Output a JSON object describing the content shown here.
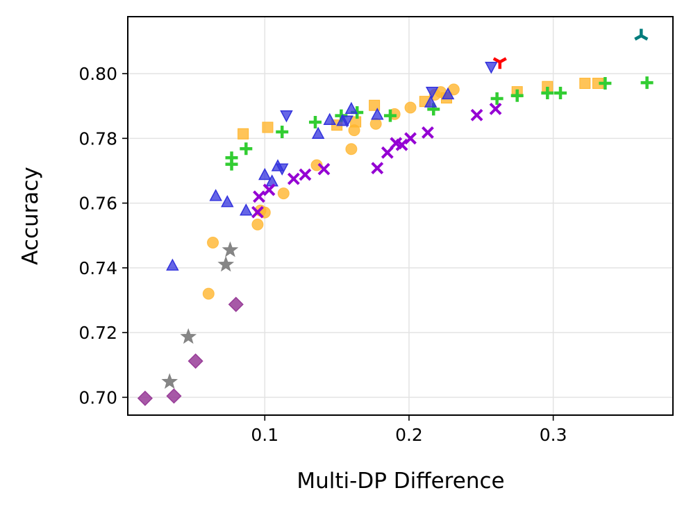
{
  "chart_data": {
    "type": "scatter",
    "title": "",
    "xlabel": "Multi-DP Difference",
    "ylabel": "Accuracy",
    "xlim": [
      0.005,
      0.383
    ],
    "ylim": [
      0.6945,
      0.8176
    ],
    "grid": true,
    "xticks": [
      0.1,
      0.2,
      0.3
    ],
    "xtick_labels": [
      "0.1",
      "0.2",
      "0.3"
    ],
    "yticks": [
      0.7,
      0.72,
      0.74,
      0.76,
      0.78,
      0.8
    ],
    "ytick_labels": [
      "0.70",
      "0.72",
      "0.74",
      "0.76",
      "0.78",
      "0.80"
    ],
    "series": [
      {
        "name": "orange-circles",
        "marker": "circle",
        "color": "#FFB52E",
        "x": [
          0.064,
          0.061,
          0.095,
          0.097,
          0.1,
          0.113,
          0.136,
          0.16,
          0.162,
          0.177,
          0.19,
          0.201,
          0.218,
          0.222,
          0.231
        ],
        "y": [
          0.7478,
          0.732,
          0.7534,
          0.7577,
          0.7571,
          0.763,
          0.7717,
          0.7767,
          0.7825,
          0.7845,
          0.7875,
          0.7895,
          0.7935,
          0.7943,
          0.7951
        ]
      },
      {
        "name": "orange-squares",
        "marker": "square",
        "color": "#FFB52E",
        "x": [
          0.085,
          0.102,
          0.15,
          0.163,
          0.176,
          0.211,
          0.226,
          0.275,
          0.296,
          0.322,
          0.331
        ],
        "y": [
          0.7814,
          0.7834,
          0.7841,
          0.7851,
          0.7902,
          0.7914,
          0.7925,
          0.7944,
          0.796,
          0.797,
          0.797
        ]
      },
      {
        "name": "green-plus",
        "marker": "plus",
        "color": "#32CD32",
        "x": [
          0.077,
          0.077,
          0.087,
          0.112,
          0.135,
          0.153,
          0.164,
          0.187,
          0.217,
          0.261,
          0.275,
          0.296,
          0.305,
          0.336,
          0.365
        ],
        "y": [
          0.774,
          0.772,
          0.7768,
          0.782,
          0.785,
          0.787,
          0.788,
          0.787,
          0.789,
          0.7923,
          0.7932,
          0.794,
          0.794,
          0.797,
          0.7972
        ]
      },
      {
        "name": "blue-triangles-up",
        "marker": "triangle-up",
        "color": "#3333DD",
        "x": [
          0.036,
          0.066,
          0.074,
          0.087,
          0.1,
          0.105,
          0.109,
          0.137,
          0.145,
          0.154,
          0.16,
          0.178,
          0.215,
          0.227
        ],
        "y": [
          0.7406,
          0.7621,
          0.7602,
          0.7576,
          0.7686,
          0.7666,
          0.7713,
          0.7813,
          0.7856,
          0.7853,
          0.789,
          0.7872,
          0.791,
          0.7935
        ]
      },
      {
        "name": "blue-triangles-down",
        "marker": "triangle-down",
        "color": "#3333DD",
        "x": [
          0.112,
          0.115,
          0.157,
          0.216,
          0.257
        ],
        "y": [
          0.7708,
          0.7872,
          0.7856,
          0.7945,
          0.8022
        ]
      },
      {
        "name": "purple-x",
        "marker": "x",
        "color": "#9400D3",
        "x": [
          0.095,
          0.096,
          0.103,
          0.12,
          0.128,
          0.141,
          0.178,
          0.185,
          0.191,
          0.195,
          0.201,
          0.213,
          0.247,
          0.26
        ],
        "y": [
          0.7572,
          0.762,
          0.7641,
          0.7675,
          0.7688,
          0.7705,
          0.7708,
          0.7756,
          0.7785,
          0.778,
          0.78,
          0.7818,
          0.7872,
          0.7891
        ]
      },
      {
        "name": "gray-stars",
        "marker": "star",
        "color": "#808080",
        "x": [
          0.076,
          0.073,
          0.047,
          0.034
        ],
        "y": [
          0.7455,
          0.741,
          0.7187,
          0.7048
        ]
      },
      {
        "name": "purple-diamonds",
        "marker": "diamond",
        "color": "#983C98",
        "x": [
          0.08,
          0.052,
          0.037,
          0.017
        ],
        "y": [
          0.7287,
          0.7112,
          0.7004,
          0.6997
        ]
      },
      {
        "name": "red-tri-down",
        "marker": "tri-down",
        "color": "#FF0000",
        "x": [
          0.263
        ],
        "y": [
          0.8036
        ]
      },
      {
        "name": "teal-tri-up",
        "marker": "tri-up",
        "color": "#007C7C",
        "x": [
          0.361
        ],
        "y": [
          0.8117
        ]
      }
    ]
  }
}
